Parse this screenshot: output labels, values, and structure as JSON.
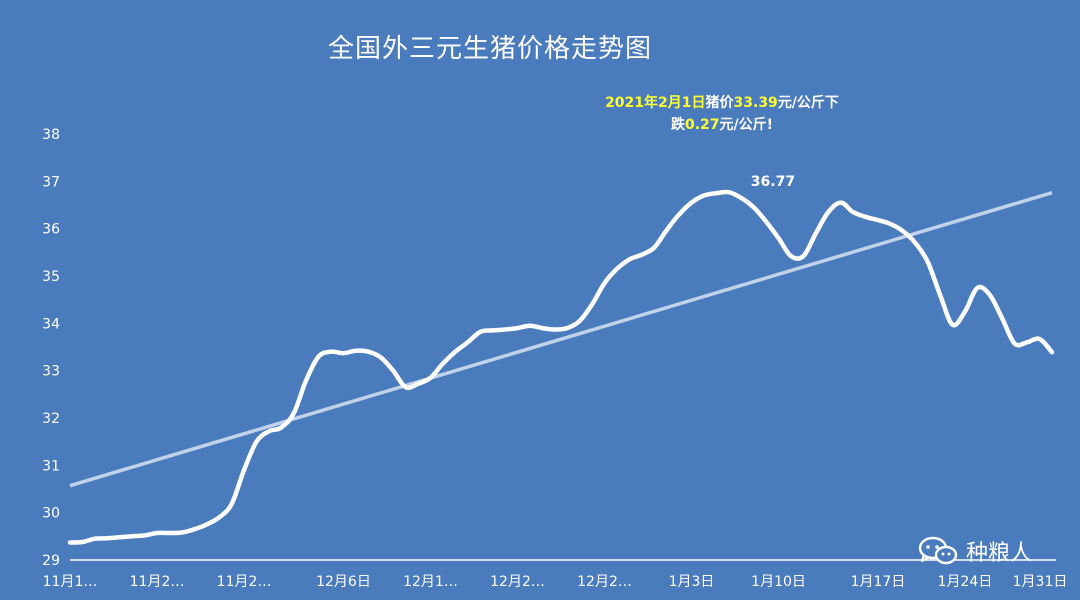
{
  "chart_data": {
    "type": "area",
    "title": "全国外三元生猪价格走势图",
    "annotation": {
      "line1_a": "2021年2月1日",
      "line1_b": "猪价",
      "line1_c": "33.39",
      "line1_d": "元/公斤下",
      "line2_a": "跌",
      "line2_b": "0.27",
      "line2_c": "元/公斤!"
    },
    "peak_label": "36.77",
    "ylim": [
      29,
      38
    ],
    "yticks": [
      "29",
      "30",
      "31",
      "32",
      "33",
      "34",
      "35",
      "36",
      "37",
      "38"
    ],
    "xtick_labels": [
      "11月1…",
      "11月2…",
      "11月2…",
      "12月6日",
      "12月1…",
      "12月2…",
      "12月2…",
      "1月3日",
      "1月10日",
      "1月17日",
      "1月24日",
      "1月31日"
    ],
    "series": [
      {
        "values": [
          29.37,
          29.38,
          29.45,
          29.46,
          29.48,
          29.5,
          29.52,
          29.57,
          29.57,
          29.58,
          29.65,
          29.75,
          29.9,
          30.18,
          30.9,
          31.5,
          31.72,
          31.8,
          32.1,
          32.8,
          33.3,
          33.4,
          33.37,
          33.42,
          33.4,
          33.28,
          33.0,
          32.65,
          32.72,
          32.85,
          33.15,
          33.4,
          33.6,
          33.82,
          33.85,
          33.87,
          33.9,
          33.95,
          33.9,
          33.87,
          33.9,
          34.05,
          34.4,
          34.85,
          35.15,
          35.35,
          35.45,
          35.6,
          35.97,
          36.3,
          36.55,
          36.7,
          36.75,
          36.77,
          36.65,
          36.45,
          36.15,
          35.8,
          35.42,
          35.42,
          35.9,
          36.35,
          36.55,
          36.35,
          36.25,
          36.18,
          36.1,
          35.95,
          35.7,
          35.3,
          34.6,
          33.97,
          34.25,
          34.75,
          34.6,
          34.1,
          33.57,
          33.6,
          33.67,
          33.39
        ]
      },
      {
        "name": "trend",
        "values": [
          30.57,
          36.76
        ]
      }
    ]
  },
  "watermark": {
    "text": "种粮人",
    "icon": "wechat-icon"
  }
}
